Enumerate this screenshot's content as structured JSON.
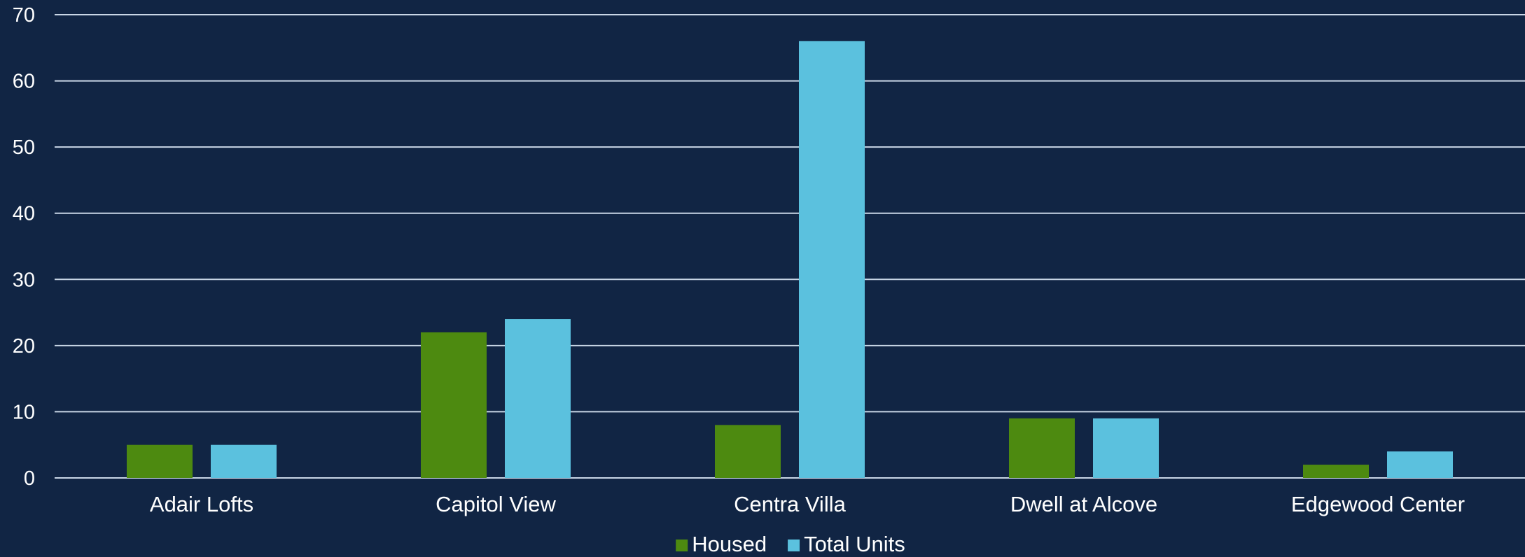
{
  "chart_data": {
    "type": "bar",
    "categories": [
      "Adair Lofts",
      "Capitol View",
      "Centra Villa",
      "Dwell at Alcove",
      "Edgewood Center"
    ],
    "series": [
      {
        "name": "Housed",
        "values": [
          5,
          22,
          8,
          9,
          2
        ],
        "color": "#4d8a10"
      },
      {
        "name": "Total Units",
        "values": [
          5,
          24,
          66,
          9,
          4
        ],
        "color": "#5bc1de"
      }
    ],
    "yticks": [
      "0",
      "10",
      "20",
      "30",
      "40",
      "50",
      "60",
      "70"
    ],
    "ylim": [
      0,
      70
    ],
    "grid": true,
    "legend": "bottom-center",
    "background": "#112544"
  }
}
